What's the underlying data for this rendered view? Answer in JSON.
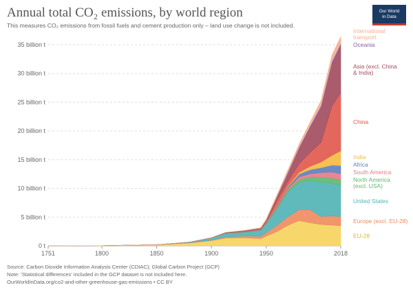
{
  "header": {
    "title": "Annual total CO₂ emissions, by world region",
    "subtitle": "This measures CO₂ emissions from fossil fuels and cement production only – land use change is not included."
  },
  "logo": {
    "line1": "Our World",
    "line2": "in Data"
  },
  "footer": {
    "source": "Source: Carbon Dioxide Information Analysis Center (CDIAC); Global Carbon Project (GCP)",
    "note": "Note: 'Statistical differences' included in the GCP dataset is not included here.",
    "url": "OurWorldInData.org/co2-and-other-greenhouse-gas-emissions • CC BY"
  },
  "chart_data": {
    "type": "area",
    "stacked": true,
    "title": "Annual total CO₂ emissions, by world region",
    "unit": "billion t",
    "xlim": [
      1751,
      2018
    ],
    "ylim": [
      0,
      35
    ],
    "x_ticks": [
      1751,
      1800,
      1850,
      1900,
      1950,
      2018
    ],
    "y_ticks": [
      {
        "value": 0,
        "label": "0 t"
      },
      {
        "value": 5,
        "label": "5 billion t"
      },
      {
        "value": 10,
        "label": "10 billion t"
      },
      {
        "value": 15,
        "label": "15 billion t"
      },
      {
        "value": 20,
        "label": "20 billion t"
      },
      {
        "value": 25,
        "label": "25 billion t"
      },
      {
        "value": 30,
        "label": "30 billion t"
      },
      {
        "value": 35,
        "label": "35 billion t"
      }
    ],
    "x": [
      1751,
      1800,
      1850,
      1880,
      1900,
      1913,
      1930,
      1945,
      1950,
      1960,
      1970,
      1980,
      1990,
      2000,
      2010,
      2018
    ],
    "series": [
      {
        "name": "EU-28",
        "label": "EU-28",
        "color": "#f6d35b",
        "values": [
          0.01,
          0.03,
          0.18,
          0.5,
          0.9,
          1.35,
          1.4,
          1.25,
          1.7,
          2.5,
          3.6,
          4.4,
          4.0,
          3.7,
          3.6,
          3.5
        ]
      },
      {
        "name": "Europe (excl. EU-28)",
        "label": "Europe (excl. EU-28)",
        "color": "#ef8a5d",
        "values": [
          0.0,
          0.0,
          0.01,
          0.04,
          0.1,
          0.2,
          0.3,
          0.4,
          0.6,
          1.1,
          1.5,
          1.9,
          2.3,
          1.4,
          1.6,
          1.6
        ]
      },
      {
        "name": "United States",
        "label": "United States",
        "color": "#4fb3b5",
        "values": [
          0.0,
          0.0,
          0.01,
          0.1,
          0.35,
          0.6,
          0.65,
          1.0,
          1.5,
          2.9,
          4.3,
          4.7,
          5.1,
          6.0,
          5.7,
          5.4
        ]
      },
      {
        "name": "North America (excl. USA)",
        "label": "North America\n(excl. USA)",
        "color": "#5bb86a",
        "values": [
          0.0,
          0.0,
          0.0,
          0.01,
          0.02,
          0.05,
          0.06,
          0.08,
          0.1,
          0.2,
          0.35,
          0.5,
          0.6,
          0.85,
          0.9,
          0.95
        ]
      },
      {
        "name": "South America",
        "label": "South America",
        "color": "#e47a8a",
        "values": [
          0.0,
          0.0,
          0.0,
          0.0,
          0.01,
          0.02,
          0.03,
          0.05,
          0.08,
          0.2,
          0.3,
          0.5,
          0.55,
          0.8,
          1.05,
          1.1
        ]
      },
      {
        "name": "Africa",
        "label": "Africa",
        "color": "#5a7fc0",
        "values": [
          0.0,
          0.0,
          0.0,
          0.0,
          0.01,
          0.02,
          0.04,
          0.05,
          0.08,
          0.15,
          0.25,
          0.5,
          0.7,
          0.85,
          1.2,
          1.4
        ]
      },
      {
        "name": "India",
        "label": "India",
        "color": "#f5b942",
        "values": [
          0.0,
          0.0,
          0.0,
          0.0,
          0.01,
          0.02,
          0.03,
          0.05,
          0.08,
          0.12,
          0.2,
          0.3,
          0.6,
          1.0,
          1.7,
          2.6
        ]
      },
      {
        "name": "China",
        "label": "China",
        "color": "#e1574c",
        "values": [
          0.0,
          0.0,
          0.0,
          0.0,
          0.0,
          0.01,
          0.02,
          0.03,
          0.08,
          0.8,
          0.8,
          1.5,
          2.4,
          3.4,
          8.6,
          10.1
        ]
      },
      {
        "name": "Asia (excl. China & India)",
        "label": "Asia (excl. China\n& India)",
        "color": "#a24a5c",
        "values": [
          0.0,
          0.0,
          0.0,
          0.0,
          0.02,
          0.05,
          0.1,
          0.12,
          0.2,
          0.6,
          1.4,
          2.6,
          4.3,
          6.0,
          7.3,
          8.1
        ]
      },
      {
        "name": "Oceania",
        "label": "Oceania",
        "color": "#8a5da8",
        "values": [
          0.0,
          0.0,
          0.0,
          0.01,
          0.01,
          0.02,
          0.03,
          0.05,
          0.07,
          0.1,
          0.17,
          0.24,
          0.3,
          0.38,
          0.45,
          0.45
        ]
      },
      {
        "name": "International transport",
        "label": "International\ntransport",
        "color": "#f3b08c",
        "values": [
          0.0,
          0.0,
          0.0,
          0.0,
          0.0,
          0.0,
          0.05,
          0.1,
          0.18,
          0.28,
          0.45,
          0.55,
          0.65,
          0.9,
          1.1,
          1.2
        ]
      }
    ],
    "legend_placement": "right-inline"
  }
}
